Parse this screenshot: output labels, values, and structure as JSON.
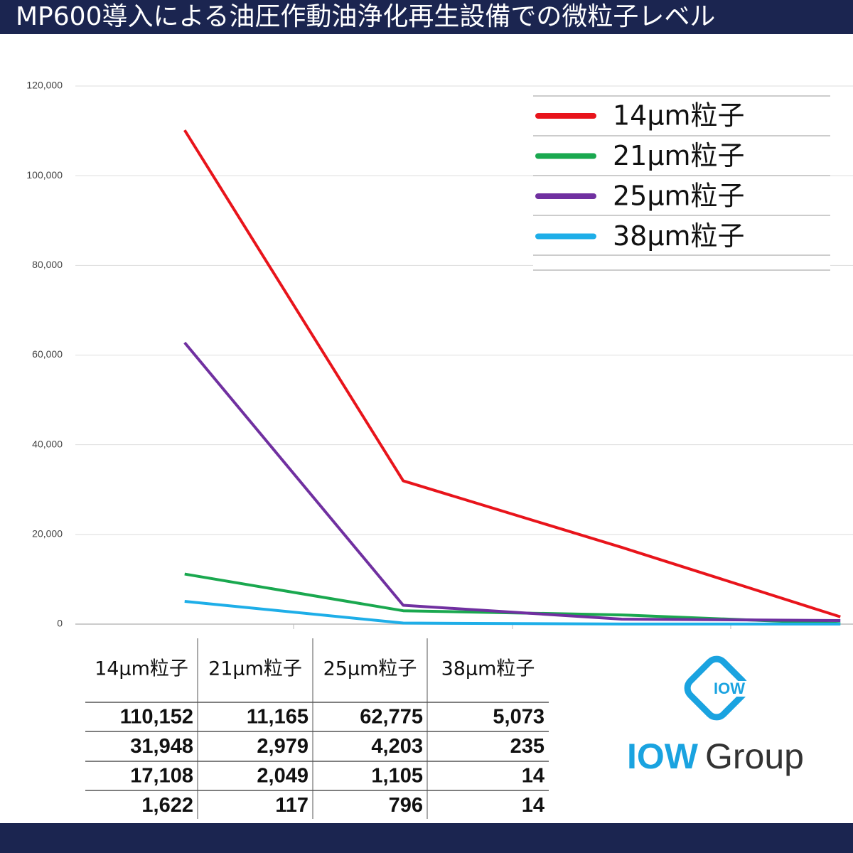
{
  "chart_data": {
    "type": "line",
    "title": "MP600導入による油圧作動油浄化再生設備での微粒子レベル",
    "categories": [
      null,
      null,
      null,
      null
    ],
    "series": [
      {
        "name": "14µm粒子",
        "color": "#e8141b",
        "values": [
          110152,
          31948,
          17108,
          1622
        ],
        "value_labels": [
          "110,152",
          "31,948",
          "17,108",
          "1,622"
        ]
      },
      {
        "name": "21µm粒子",
        "color": "#1aa84f",
        "values": [
          11165,
          2979,
          2049,
          117
        ],
        "value_labels": [
          "11,165",
          "2,979",
          "2,049",
          "117"
        ]
      },
      {
        "name": "25µm粒子",
        "color": "#7030a0",
        "values": [
          62775,
          4203,
          1105,
          796
        ],
        "value_labels": [
          "62,775",
          "4,203",
          "1,105",
          "796"
        ]
      },
      {
        "name": "38µm粒子",
        "color": "#1eaee8",
        "values": [
          5073,
          235,
          14,
          14
        ],
        "value_labels": [
          "5,073",
          "235",
          "14",
          "14"
        ]
      }
    ],
    "ylim": [
      0,
      120000
    ],
    "yticks": [
      0,
      {
        "value": 20000,
        "label": "20,000"
      },
      {
        "value": 40000,
        "label": "40,000"
      },
      {
        "value": 60000,
        "label": "60,000"
      },
      {
        "value": 80000,
        "label": "80,000"
      },
      {
        "value": 100000,
        "label": "100,000"
      },
      {
        "value": 120000,
        "label": "120,000"
      }
    ],
    "grid": true,
    "legend": "upper right"
  },
  "logo": {
    "icon_text": "IOW",
    "brand": "IOW",
    "word": "Group"
  }
}
